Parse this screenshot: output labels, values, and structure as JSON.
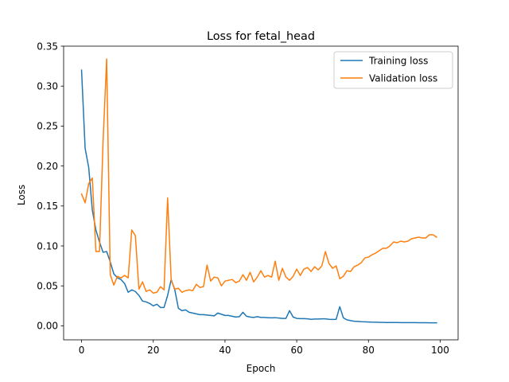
{
  "chart_data": {
    "type": "line",
    "title": "Loss for fetal_head",
    "xlabel": "Epoch",
    "ylabel": "Loss",
    "xlim": [
      -5,
      105
    ],
    "ylim": [
      -0.0175,
      0.35
    ],
    "xticks": [
      0,
      20,
      40,
      60,
      80,
      100
    ],
    "xtick_labels": [
      "0",
      "20",
      "40",
      "60",
      "80",
      "100"
    ],
    "yticks": [
      0.0,
      0.05,
      0.1,
      0.15,
      0.2,
      0.25,
      0.3,
      0.35
    ],
    "ytick_labels": [
      "0.00",
      "0.05",
      "0.10",
      "0.15",
      "0.20",
      "0.25",
      "0.30",
      "0.35"
    ],
    "grid": false,
    "legend_position": "top-right",
    "series": [
      {
        "name": "Training loss",
        "color": "#1f77b4",
        "values": [
          0.32,
          0.222,
          0.198,
          0.145,
          0.12,
          0.105,
          0.092,
          0.093,
          0.08,
          0.065,
          0.06,
          0.058,
          0.053,
          0.042,
          0.045,
          0.043,
          0.038,
          0.031,
          0.03,
          0.028,
          0.025,
          0.027,
          0.023,
          0.023,
          0.038,
          0.058,
          0.045,
          0.022,
          0.019,
          0.02,
          0.017,
          0.016,
          0.015,
          0.014,
          0.014,
          0.0135,
          0.013,
          0.0125,
          0.016,
          0.0145,
          0.013,
          0.013,
          0.012,
          0.011,
          0.0115,
          0.017,
          0.012,
          0.011,
          0.0105,
          0.0115,
          0.0105,
          0.0105,
          0.0102,
          0.01,
          0.0102,
          0.0098,
          0.0093,
          0.0093,
          0.019,
          0.011,
          0.0093,
          0.009,
          0.009,
          0.0088,
          0.0082,
          0.0085,
          0.0085,
          0.0088,
          0.0088,
          0.0082,
          0.008,
          0.0082,
          0.024,
          0.01,
          0.0075,
          0.0065,
          0.0058,
          0.0055,
          0.0052,
          0.005,
          0.0048,
          0.0046,
          0.0045,
          0.0044,
          0.0043,
          0.0042,
          0.0042,
          0.0041,
          0.0041,
          0.004,
          0.004,
          0.004,
          0.004,
          0.004,
          0.0039,
          0.0039,
          0.0039,
          0.0038,
          0.0038,
          0.0038
        ]
      },
      {
        "name": "Validation loss",
        "color": "#ff7f0e",
        "values": [
          0.165,
          0.154,
          0.178,
          0.185,
          0.093,
          0.093,
          0.231,
          0.334,
          0.064,
          0.051,
          0.062,
          0.06,
          0.063,
          0.06,
          0.12,
          0.113,
          0.046,
          0.055,
          0.043,
          0.045,
          0.041,
          0.042,
          0.049,
          0.045,
          0.16,
          0.057,
          0.046,
          0.047,
          0.042,
          0.044,
          0.045,
          0.044,
          0.052,
          0.048,
          0.049,
          0.076,
          0.056,
          0.061,
          0.06,
          0.05,
          0.056,
          0.057,
          0.058,
          0.054,
          0.056,
          0.064,
          0.057,
          0.067,
          0.055,
          0.061,
          0.069,
          0.061,
          0.063,
          0.061,
          0.081,
          0.057,
          0.072,
          0.061,
          0.057,
          0.062,
          0.071,
          0.063,
          0.071,
          0.073,
          0.068,
          0.074,
          0.07,
          0.075,
          0.093,
          0.078,
          0.072,
          0.075,
          0.059,
          0.062,
          0.069,
          0.068,
          0.074,
          0.076,
          0.079,
          0.085,
          0.086,
          0.089,
          0.091,
          0.094,
          0.097,
          0.097,
          0.1,
          0.105,
          0.104,
          0.106,
          0.105,
          0.106,
          0.109,
          0.11,
          0.111,
          0.11,
          0.11,
          0.114,
          0.114,
          0.111
        ]
      }
    ]
  }
}
